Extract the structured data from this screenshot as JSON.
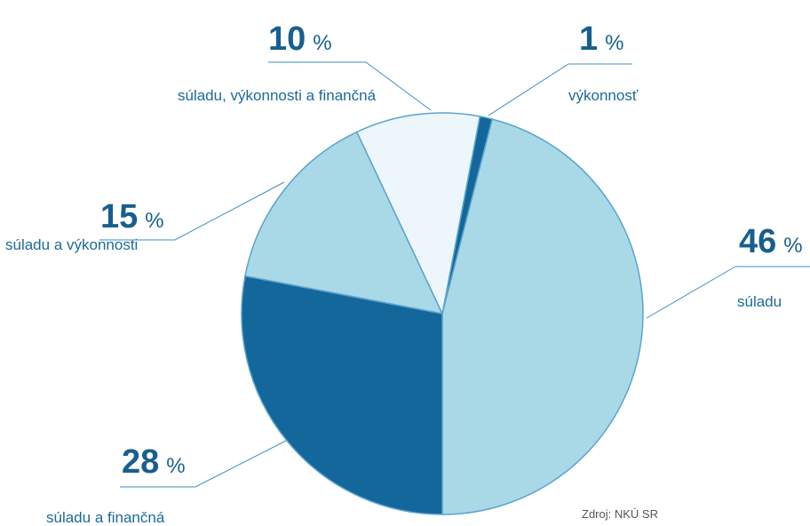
{
  "chart_data": {
    "type": "pie",
    "categories": [
      "výkonnosť",
      "súladu",
      "súladu a finančná",
      "súladu a výkonnosti",
      "súladu, výkonnosti a finančná"
    ],
    "values": [
      1,
      46,
      28,
      15,
      10
    ],
    "colors": [
      "#14679a",
      "#a9d9e6",
      "#14679a",
      "#a9d9e6",
      "#edf6fa"
    ],
    "unit": "%",
    "source": "Zdroj: NKÚ SR"
  }
}
